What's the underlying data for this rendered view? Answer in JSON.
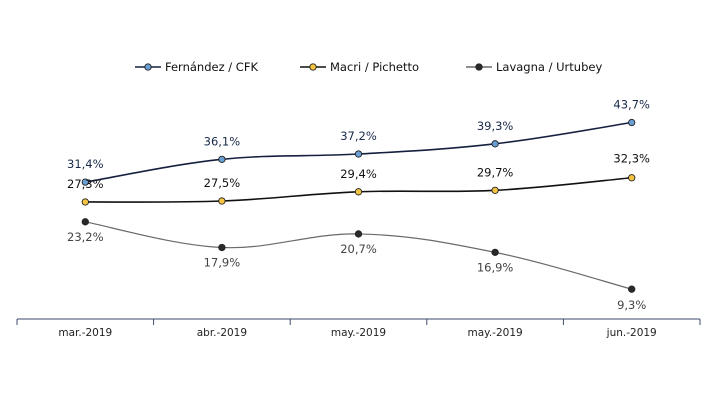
{
  "chart_data": {
    "type": "line",
    "title": "",
    "xlabel": "",
    "ylabel": "",
    "categories": [
      "mar.-2019",
      "abr.-2019",
      "may.-2019",
      "may.-2019",
      "jun.-2019"
    ],
    "ylim": [
      5,
      50
    ],
    "grid": false,
    "legend_position": "top",
    "series": [
      {
        "name": "Fernández / CFK",
        "values": [
          31.4,
          36.1,
          37.2,
          39.3,
          43.7
        ],
        "labels": [
          "31,4%",
          "36,1%",
          "37,2%",
          "39,3%",
          "43,7%"
        ],
        "line_color": "#152040",
        "marker_color": "#6a9fd4",
        "label_color": "#1a2a4a",
        "smooth": true
      },
      {
        "name": "Macri / Pichetto",
        "values": [
          27.3,
          27.5,
          29.4,
          29.7,
          32.3
        ],
        "labels": [
          "27,3%",
          "27,5%",
          "29,4%",
          "29,7%",
          "32,3%"
        ],
        "line_color": "#111111",
        "marker_color": "#f5c542",
        "label_color": "#111111",
        "smooth": true
      },
      {
        "name": "Lavagna / Urtubey",
        "values": [
          23.2,
          17.9,
          20.7,
          16.9,
          9.3
        ],
        "labels": [
          "23,2%",
          "17,9%",
          "20,7%",
          "16,9%",
          "9,3%"
        ],
        "line_color": "#6a6a6a",
        "marker_color": "#2a2a2a",
        "label_color": "#444444",
        "smooth": true
      }
    ]
  }
}
